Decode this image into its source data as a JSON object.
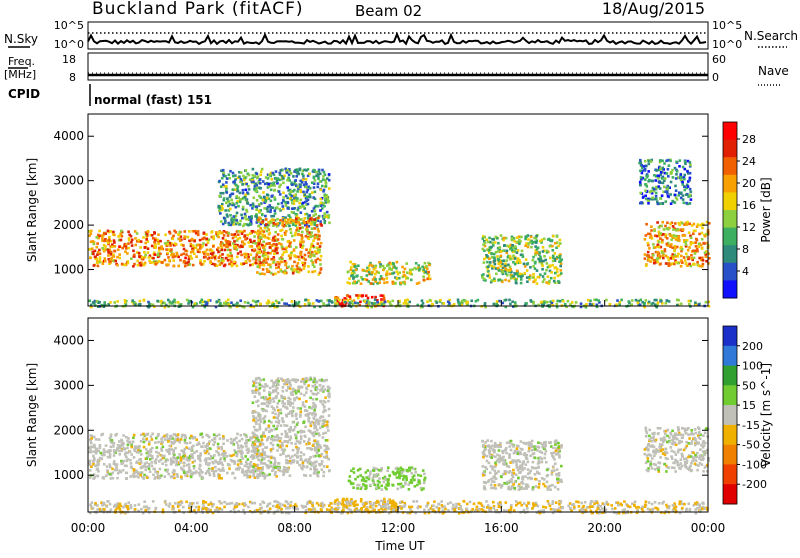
{
  "header": {
    "station": "Buckland Park (fitACF)",
    "beam": "Beam 02",
    "date": "18/Aug/2015"
  },
  "strips": {
    "nsky_label": "N.Sky",
    "nsearch_label": "N.Search",
    "freq_label_line1": "Freq.",
    "freq_label_line2": "[MHz]",
    "nave_label": "Nave",
    "cpid_label": "CPID",
    "cpid_text": "normal (fast) 151",
    "noise_ticks": [
      "10^5",
      "10^0"
    ],
    "noise_ticks_right": [
      "10^5",
      "10^0"
    ],
    "freq_ticks": [
      "18",
      "8"
    ],
    "nave_ticks": [
      "60",
      "0"
    ]
  },
  "x_axis": {
    "label": "Time UT",
    "ticks": [
      "00:00",
      "04:00",
      "08:00",
      "12:00",
      "16:00",
      "20:00",
      "00:00"
    ]
  },
  "chart_data": [
    {
      "type": "heatmap",
      "title": "",
      "xlabel": "Time UT",
      "ylabel": "Slant Range [km]",
      "x_range_hours": [
        0,
        24
      ],
      "ylim": [
        180,
        4500
      ],
      "y_ticks": [
        1000,
        2000,
        3000,
        4000
      ],
      "colorbar_label": "Power [dB]",
      "colorbar_ticks": [
        4,
        8,
        12,
        16,
        20,
        24,
        28
      ],
      "colorbar_colors": [
        "#1010ff",
        "#2850c8",
        "#2e8a7a",
        "#3cb060",
        "#8cd040",
        "#f0d000",
        "#f8a000",
        "#f06000",
        "#e02000",
        "#ff0000"
      ],
      "echo_regions": [
        {
          "t0": 0.0,
          "t1": 6.8,
          "y0": 1100,
          "y1": 1900,
          "power": 24
        },
        {
          "t0": 5.0,
          "t1": 9.3,
          "y0": 2000,
          "y1": 3300,
          "power": 12
        },
        {
          "t0": 6.5,
          "t1": 9.0,
          "y0": 900,
          "y1": 2200,
          "power": 22
        },
        {
          "t0": 10.0,
          "t1": 13.2,
          "y0": 700,
          "y1": 1200,
          "power": 18
        },
        {
          "t0": 9.5,
          "t1": 11.5,
          "y0": 200,
          "y1": 450,
          "power": 28
        },
        {
          "t0": 15.2,
          "t1": 18.3,
          "y0": 700,
          "y1": 1800,
          "power": 16
        },
        {
          "t0": 21.5,
          "t1": 24.0,
          "y0": 1100,
          "y1": 2100,
          "power": 22
        },
        {
          "t0": 21.3,
          "t1": 23.3,
          "y0": 2500,
          "y1": 3500,
          "power": 10
        },
        {
          "t0": 0.0,
          "t1": 24.0,
          "y0": 180,
          "y1": 350,
          "power": 14
        }
      ]
    },
    {
      "type": "heatmap",
      "title": "",
      "xlabel": "Time UT",
      "ylabel": "Slant Range [km]",
      "x_range_hours": [
        0,
        24
      ],
      "ylim": [
        180,
        4500
      ],
      "y_ticks": [
        1000,
        2000,
        3000,
        4000
      ],
      "colorbar_label": "Velocity [m s^-1]",
      "colorbar_ticks": [
        200,
        100,
        50,
        15,
        -15,
        -50,
        -100,
        -200
      ],
      "colorbar_colors": [
        "#1a30c8",
        "#2f7ad8",
        "#30a030",
        "#70cc30",
        "#c0c0b8",
        "#f0b000",
        "#f08000",
        "#f04000",
        "#e00000"
      ],
      "echo_regions": [
        {
          "t0": 0.0,
          "t1": 6.8,
          "y0": 950,
          "y1": 1950,
          "velocity": 0
        },
        {
          "t0": 6.3,
          "t1": 9.3,
          "y0": 1000,
          "y1": 3200,
          "velocity": 0
        },
        {
          "t0": 10.0,
          "t1": 13.0,
          "y0": 700,
          "y1": 1200,
          "velocity": 40
        },
        {
          "t0": 9.5,
          "t1": 12.0,
          "y0": 200,
          "y1": 500,
          "velocity": -50
        },
        {
          "t0": 15.2,
          "t1": 18.3,
          "y0": 700,
          "y1": 1800,
          "velocity": 0
        },
        {
          "t0": 21.5,
          "t1": 24.0,
          "y0": 1100,
          "y1": 2100,
          "velocity": 0
        },
        {
          "t0": 0.0,
          "t1": 24.0,
          "y0": 180,
          "y1": 450,
          "velocity": -20
        }
      ]
    }
  ]
}
